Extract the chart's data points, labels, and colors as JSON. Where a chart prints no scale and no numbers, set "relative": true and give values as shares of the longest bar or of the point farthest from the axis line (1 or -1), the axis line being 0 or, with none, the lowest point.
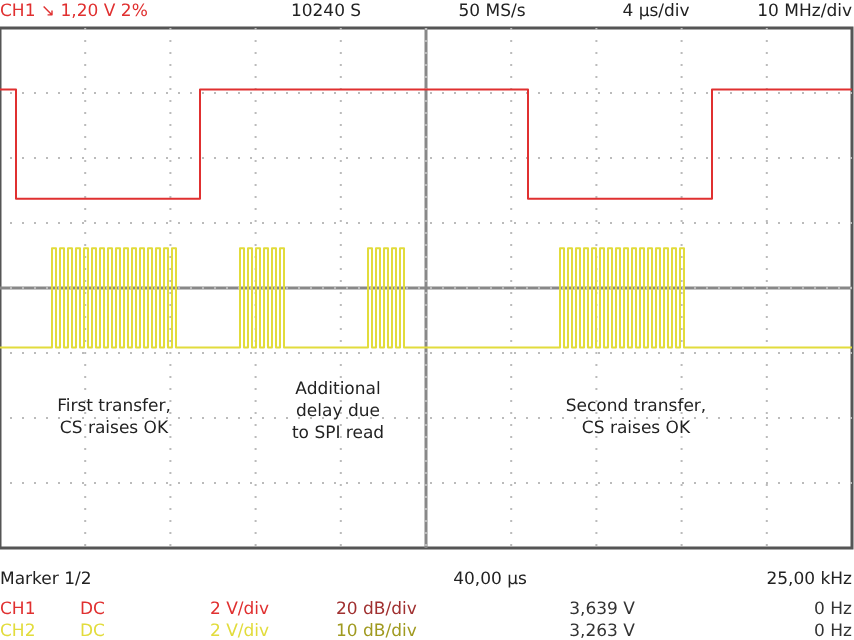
{
  "chart_data": {
    "type": "step",
    "relative": true,
    "categories": [
      null,
      null,
      null,
      null,
      null,
      null,
      null,
      null,
      null,
      null,
      null,
      null,
      null,
      null,
      null,
      null,
      null,
      null,
      null,
      null,
      null,
      null,
      null,
      null,
      null,
      null,
      null,
      null,
      null,
      null,
      null,
      null,
      null,
      null,
      null,
      null,
      null,
      null,
      null,
      null,
      null,
      null,
      null,
      null,
      null,
      null,
      null,
      null,
      null,
      null,
      null,
      null,
      null,
      null,
      null,
      null,
      null,
      null,
      null,
      null,
      null,
      null,
      null,
      null,
      null,
      null,
      null,
      null,
      null,
      null,
      null,
      null,
      null,
      null,
      null,
      null,
      null,
      null,
      null,
      null,
      null,
      null,
      null,
      null,
      null,
      null,
      null,
      null,
      null,
      null,
      null,
      null,
      null,
      null,
      null,
      null,
      null,
      null,
      null,
      null,
      null,
      null,
      null,
      null,
      null,
      null,
      null,
      null,
      null,
      null,
      null,
      null,
      null,
      null,
      null,
      null,
      null,
      null,
      null,
      null,
      null,
      null,
      null,
      null,
      null,
      null,
      null,
      null,
      null,
      null,
      null,
      null,
      null,
      null,
      null,
      null,
      null,
      null,
      null,
      null,
      null,
      null,
      null,
      null,
      null,
      null,
      null,
      null,
      null,
      null,
      null,
      null,
      null,
      null,
      null,
      null,
      null,
      null,
      null,
      null,
      null,
      null,
      null,
      null,
      null,
      null,
      null,
      null,
      null,
      null,
      null,
      null,
      null,
      null,
      null,
      null,
      null,
      null,
      null,
      null,
      null,
      null,
      null,
      null,
      null,
      null,
      null,
      null,
      null,
      null,
      null,
      null,
      null,
      null,
      null,
      null,
      null,
      null,
      null,
      null,
      null,
      null,
      null,
      null,
      null,
      null,
      null,
      null,
      null,
      null,
      null,
      null,
      null,
      null
    ],
    "grid": true,
    "series": [
      {
        "name": "CH1",
        "color": "#e03030",
        "values": [
          1,
          1,
          1,
          1,
          0.45,
          0.45,
          0.45,
          0.45,
          0.45,
          0.45,
          0.45,
          0.45,
          0.45,
          0.45,
          0.45,
          0.45,
          0.45,
          0.45,
          0.45,
          0.45,
          0.45,
          0.45,
          0.45,
          0.45,
          0.45,
          0.45,
          0.45,
          0.45,
          0.45,
          0.45,
          0.45,
          0.45,
          0.45,
          0.45,
          0.45,
          0.45,
          0.45,
          0.45,
          0.45,
          0.45,
          0.45,
          0.45,
          0.45,
          0.45,
          0.45,
          0.45,
          0.45,
          0.45,
          0.45,
          0.45,
          1,
          1,
          1,
          1,
          1,
          1,
          1,
          1,
          1,
          1,
          1,
          1,
          1,
          1,
          1,
          1,
          1,
          1,
          1,
          1,
          1,
          1,
          1,
          1,
          1,
          1,
          1,
          1,
          1,
          1,
          1,
          1,
          1,
          1,
          1,
          1,
          1,
          1,
          1,
          1,
          1,
          1,
          1,
          1,
          1,
          1,
          1,
          1,
          1,
          1,
          1,
          1,
          1,
          1,
          1,
          1,
          1,
          1,
          1,
          1,
          1,
          1,
          1,
          1,
          1,
          1,
          1,
          1,
          1,
          1,
          1,
          1,
          1,
          1,
          1,
          1,
          1,
          1,
          1,
          1,
          1,
          1,
          0.45,
          0.45,
          0.45,
          0.45,
          0.45,
          0.45,
          0.45,
          0.45,
          0.45,
          0.45,
          0.45,
          0.45,
          0.45,
          0.45,
          0.45,
          0.45,
          0.45,
          0.45,
          0.45,
          0.45,
          0.45,
          0.45,
          0.45,
          0.45,
          0.45,
          0.45,
          0.45,
          0.45,
          0.45,
          0.45,
          0.45,
          0.45,
          0.45,
          0.45,
          0.45,
          0.45,
          0.45,
          0.45,
          0.45,
          0.45,
          0.45,
          0.45,
          0.45,
          0.45,
          0.45,
          0.45,
          1,
          1,
          1,
          1,
          1,
          1,
          1,
          1,
          1,
          1,
          1,
          1,
          1,
          1,
          1,
          1,
          1,
          1,
          1,
          1,
          1,
          1,
          1,
          1,
          1,
          1,
          1,
          1,
          1,
          1,
          1,
          1,
          1,
          1,
          1,
          1
        ]
      },
      {
        "name": "CH2",
        "color": "#e2dc3c",
        "values": [
          -0.3,
          -0.3,
          -0.3,
          -0.3,
          -0.3,
          -0.3,
          -0.3,
          -0.3,
          -0.3,
          -0.3,
          -0.3,
          -0.3,
          -0.3,
          0.2,
          -0.3,
          0.2,
          -0.3,
          0.2,
          -0.3,
          0.2,
          -0.3,
          0.2,
          -0.3,
          0.2,
          -0.3,
          0.2,
          -0.3,
          0.2,
          -0.3,
          0.2,
          -0.3,
          0.2,
          -0.3,
          0.2,
          -0.3,
          0.2,
          -0.3,
          0.2,
          -0.3,
          0.2,
          -0.3,
          0.2,
          -0.3,
          0.2,
          -0.3,
          -0.3,
          -0.3,
          -0.3,
          -0.3,
          -0.3,
          -0.3,
          -0.3,
          -0.3,
          -0.3,
          -0.3,
          -0.3,
          -0.3,
          -0.3,
          -0.3,
          -0.3,
          0.2,
          -0.3,
          0.2,
          -0.3,
          0.2,
          -0.3,
          0.2,
          -0.3,
          0.2,
          -0.3,
          0.2,
          -0.3,
          -0.3,
          -0.3,
          -0.3,
          -0.3,
          -0.3,
          -0.3,
          -0.3,
          -0.3,
          -0.3,
          -0.3,
          -0.3,
          -0.3,
          -0.3,
          -0.3,
          -0.3,
          -0.3,
          -0.3,
          -0.3,
          -0.3,
          -0.3,
          0.2,
          -0.3,
          0.2,
          -0.3,
          0.2,
          -0.3,
          0.2,
          -0.3,
          0.2,
          -0.3,
          -0.3,
          -0.3,
          -0.3,
          -0.3,
          -0.3,
          -0.3,
          -0.3,
          -0.3,
          -0.3,
          -0.3,
          -0.3,
          -0.3,
          -0.3,
          -0.3,
          -0.3,
          -0.3,
          -0.3,
          -0.3,
          -0.3,
          -0.3,
          -0.3,
          -0.3,
          -0.3,
          -0.3,
          -0.3,
          -0.3,
          -0.3,
          -0.3,
          -0.3,
          -0.3,
          -0.3,
          -0.3,
          -0.3,
          -0.3,
          -0.3,
          -0.3,
          -0.3,
          -0.3,
          0.2,
          -0.3,
          0.2,
          -0.3,
          0.2,
          -0.3,
          0.2,
          -0.3,
          0.2,
          -0.3,
          0.2,
          -0.3,
          0.2,
          -0.3,
          0.2,
          -0.3,
          0.2,
          -0.3,
          0.2,
          -0.3,
          0.2,
          -0.3,
          0.2,
          -0.3,
          0.2,
          -0.3,
          0.2,
          -0.3,
          0.2,
          -0.3,
          0.2,
          -0.3,
          -0.3,
          -0.3,
          -0.3,
          -0.3,
          -0.3,
          -0.3,
          -0.3,
          -0.3,
          -0.3,
          -0.3,
          -0.3,
          -0.3,
          -0.3,
          -0.3,
          -0.3,
          -0.3,
          -0.3,
          -0.3,
          -0.3,
          -0.3,
          -0.3,
          -0.3,
          -0.3,
          -0.3,
          -0.3,
          -0.3,
          -0.3,
          -0.3,
          -0.3,
          -0.3,
          -0.3,
          -0.3,
          -0.3,
          -0.3,
          -0.3,
          -0.3,
          -0.3,
          -0.3,
          -0.3,
          -0.3,
          -0.3,
          -0.3
        ]
      }
    ],
    "annotations": [
      "CH1 ↘ 1,20 V 2%",
      "10240 S",
      "50 MS/s",
      "4 µs/div",
      "10 MHz/div",
      "First transfer,\nCS raises OK",
      "Additional\ndelay due\nto SPI read",
      "Second transfer,\nCS raises OK",
      "Marker 1/2",
      "40,00 µs",
      "25,00 kHz",
      "DC",
      "2 V/div",
      "20 dB/div",
      "3,639 V",
      "0 Hz",
      "DC",
      "2 V/div",
      "10 dB/div",
      "3,263 V",
      "0 Hz"
    ]
  }
}
